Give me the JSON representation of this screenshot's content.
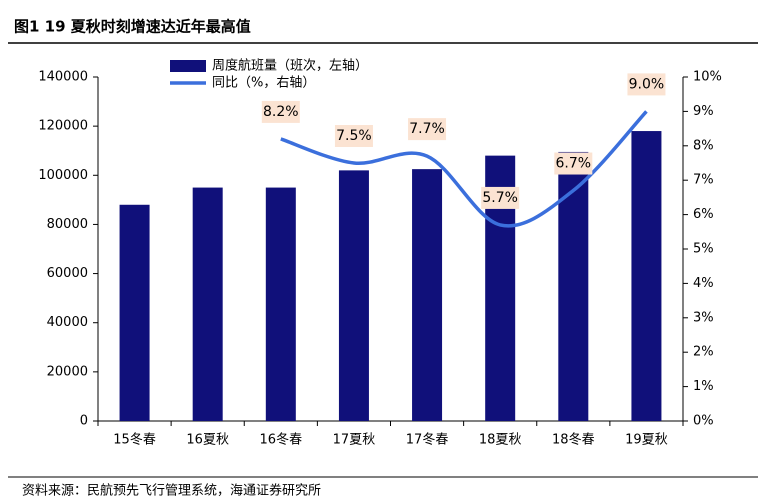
{
  "title": "图1  19 夏秋时刻增速达近年最高值",
  "source": "资料来源：民航预先飞行管理系统，海通证券研究所",
  "chart_data": {
    "type": "bar-line",
    "categories": [
      "15冬春",
      "16夏秋",
      "16冬春",
      "17夏秋",
      "17冬春",
      "18夏秋",
      "18冬春",
      "19夏秋"
    ],
    "series": [
      {
        "name": "周度航班量（班次，左轴）",
        "color": "#10107a",
        "type": "bar",
        "values": [
          88000,
          95000,
          95000,
          102000,
          102500,
          108000,
          109500,
          118000
        ]
      },
      {
        "name": "同比（%，右轴）",
        "color": "#3b6fdc",
        "type": "line",
        "axis": "y2",
        "values": [
          null,
          null,
          8.2,
          7.5,
          7.7,
          5.7,
          6.7,
          9.0
        ],
        "value_labels": [
          null,
          null,
          "8.2%",
          "7.5%",
          "7.7%",
          "5.7%",
          "6.7%",
          "9.0%"
        ]
      }
    ],
    "ylim": [
      0,
      140000
    ],
    "yticks": [
      0,
      20000,
      40000,
      60000,
      80000,
      100000,
      120000,
      140000
    ],
    "y2lim": [
      0,
      10
    ],
    "y2ticks": [
      {
        "value": 0,
        "label": "0%"
      },
      {
        "value": 1,
        "label": "1%"
      },
      {
        "value": 2,
        "label": "2%"
      },
      {
        "value": 3,
        "label": "3%"
      },
      {
        "value": 4,
        "label": "4%"
      },
      {
        "value": 5,
        "label": "5%"
      },
      {
        "value": 6,
        "label": "6%"
      },
      {
        "value": 7,
        "label": "7%"
      },
      {
        "value": 8,
        "label": "8%"
      },
      {
        "value": 9,
        "label": "9%"
      },
      {
        "value": 10,
        "label": "10%"
      }
    ]
  }
}
